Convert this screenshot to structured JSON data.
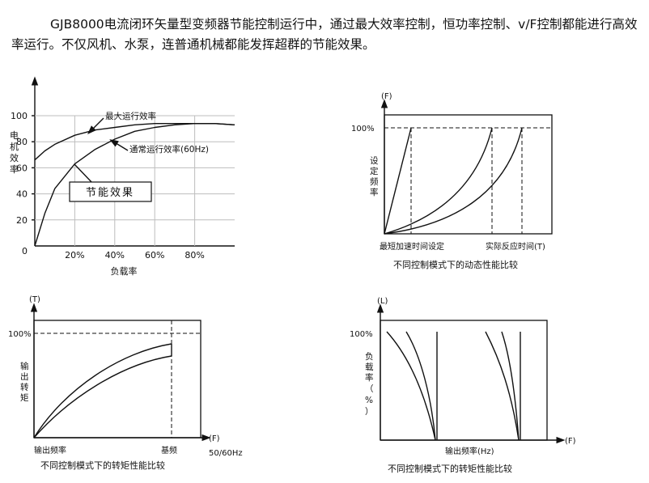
{
  "intro": {
    "text": "GJB8000电流闭环矢量型变频器节能控制运行中，通过最大效率控制，恒功率控制、v/F控制都能进行高效率运行。不仅风机、水泵，连普通机械都能发挥超群的节能效果。"
  },
  "colors": {
    "ink": "#111111",
    "grid": "#bdbdbd",
    "background": "#ffffff"
  },
  "chart_data": [
    {
      "type": "line",
      "ylabel": "电机效率",
      "xlabel": "负载率",
      "yticks": [
        "100",
        "80",
        "60",
        "40",
        "20",
        "0"
      ],
      "xticks": [
        "20%",
        "40%",
        "60%",
        "80%"
      ],
      "ylim": [
        0,
        100
      ],
      "xlim": [
        0,
        100
      ],
      "series": [
        {
          "name": "最大运行效率",
          "x": [
            0,
            5,
            10,
            20,
            30,
            40,
            50,
            60,
            70,
            80,
            90,
            100
          ],
          "y": [
            66,
            73,
            78,
            85,
            89,
            91,
            93,
            94,
            94,
            94,
            94,
            93
          ]
        },
        {
          "name": "通常运行效率(60Hz)",
          "x": [
            0,
            5,
            10,
            20,
            30,
            40,
            50,
            60,
            70,
            80,
            90,
            100
          ],
          "y": [
            0,
            25,
            44,
            63,
            74,
            82,
            88,
            91,
            93,
            94,
            94,
            93
          ]
        }
      ],
      "annotation": "节能效果"
    },
    {
      "type": "line",
      "ylabel_axis": "(F)",
      "ylabel": "设定频率",
      "y_marker": "100%",
      "xlabel_axis": "(T)",
      "x_markers": [
        "最短加速时间设定",
        "实际反应时间(T)"
      ],
      "caption": "不同控制模式下的动态性能比较"
    },
    {
      "type": "line",
      "ylabel_axis": "(T)",
      "ylabel": "输出转矩",
      "y_marker": "100%",
      "xlabel_axis": "(F)",
      "x_markers": [
        "输出频率",
        "基频",
        "50/60Hz"
      ],
      "caption": "不同控制模式下的转矩性能比较"
    },
    {
      "type": "line",
      "ylabel_axis": "(L)",
      "ylabel": "负载率（%）",
      "y_marker": "100%",
      "xlabel_axis": "(F)",
      "xlabel": "输出频率(Hz)",
      "caption": "不同控制模式下的转矩性能比较"
    }
  ]
}
